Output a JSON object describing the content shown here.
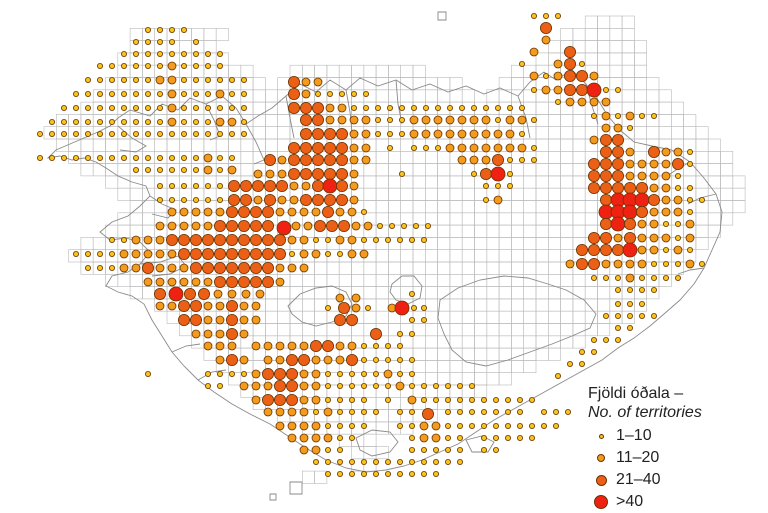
{
  "colors": {
    "grid": "#b9b9b9",
    "coast": "#8a8a8a",
    "dot_outline": "#6a3400",
    "class_1": "#f7c31c",
    "class_2": "#f39b1c",
    "class_3": "#ec5f17",
    "class_4": "#ee2112"
  },
  "legend": {
    "title": "Fjöldi óðala –",
    "subtitle": "No. of territories",
    "classes": [
      {
        "label": "1–10",
        "color": "#f7c31c"
      },
      {
        "label": "11–20",
        "color": "#f39b1c"
      },
      {
        "label": "21–40",
        "color": "#ec5f17"
      },
      {
        "label": ">40",
        "color": "#ee2112"
      }
    ]
  }
}
